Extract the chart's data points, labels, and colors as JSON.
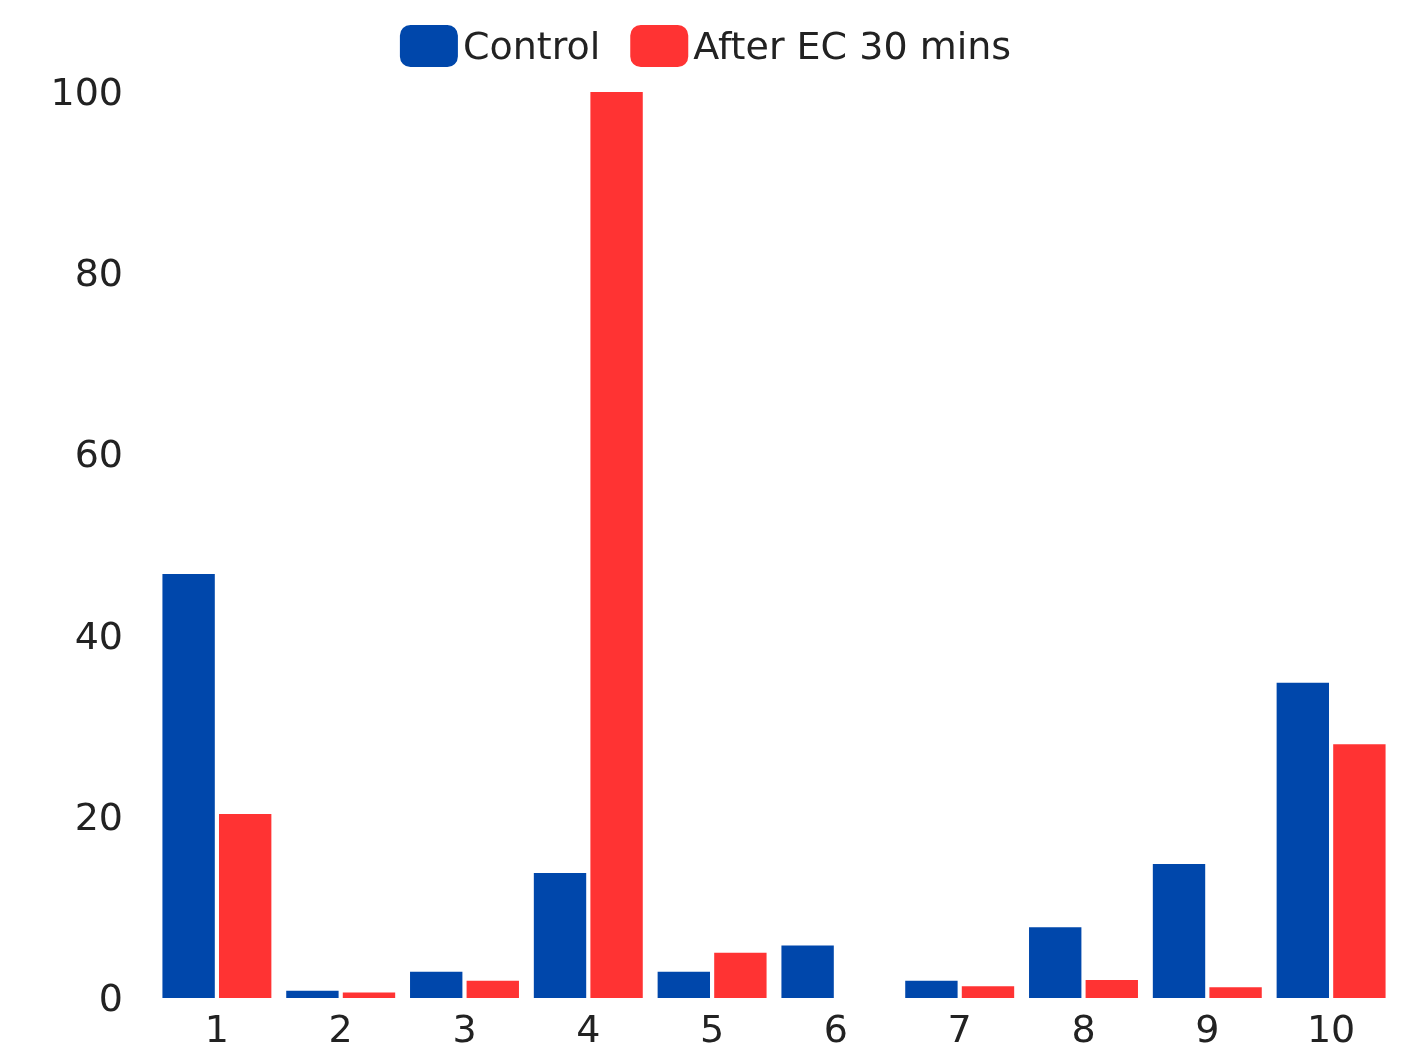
{
  "chart_data": {
    "type": "bar",
    "categories": [
      "1",
      "2",
      "3",
      "4",
      "5",
      "6",
      "7",
      "8",
      "9",
      "10"
    ],
    "series": [
      {
        "name": "Control",
        "color": "#0047ab",
        "values": [
          46.8,
          0.8,
          2.9,
          13.8,
          2.9,
          5.8,
          1.9,
          7.8,
          14.8,
          34.8
        ]
      },
      {
        "name": "After EC 30 mins",
        "color": "#ff3333",
        "values": [
          20.3,
          0.6,
          1.9,
          100,
          5,
          0,
          1.3,
          2,
          1.2,
          28
        ]
      }
    ],
    "ylim": [
      0,
      100
    ],
    "yticks": [
      0,
      20,
      40,
      60,
      80,
      100
    ],
    "grid": false,
    "legend": "top"
  }
}
